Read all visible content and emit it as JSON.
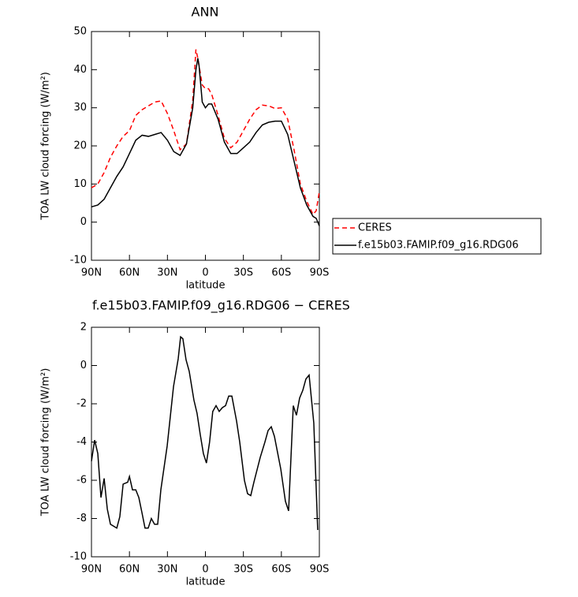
{
  "chart_data": [
    {
      "type": "line",
      "title": "ANN",
      "ylabel": "TOA LW cloud forcing (W/m²)",
      "xlabel": "latitude",
      "x": [
        90,
        85,
        80,
        75,
        70,
        65,
        60,
        55,
        50,
        45,
        40,
        35,
        30,
        25,
        20,
        15,
        10,
        7.5,
        6,
        5,
        2.5,
        0,
        -2.5,
        -5,
        -10,
        -15,
        -20,
        -25,
        -30,
        -35,
        -40,
        -45,
        -50,
        -55,
        -60,
        -65,
        -70,
        -75,
        -80,
        -85,
        -87.5,
        -90
      ],
      "series": [
        {
          "name": "CERES",
          "color": "#ff0000",
          "linestyle": "dashed",
          "values": [
            9,
            10,
            13,
            17,
            20,
            22.5,
            24,
            28,
            29.5,
            30.5,
            31.5,
            31.8,
            28.5,
            24,
            19,
            20.5,
            32,
            45.3,
            43,
            41,
            36,
            35,
            35,
            33.5,
            28,
            22,
            19.5,
            21,
            24,
            27,
            29.5,
            30.7,
            30.5,
            29.8,
            30,
            27,
            19,
            10,
            5.5,
            2,
            3,
            8
          ]
        },
        {
          "name": "f.e15b03.FAMIP.f09_g16.RDG06",
          "color": "#000000",
          "linestyle": "solid",
          "values": [
            4,
            4.5,
            6,
            9,
            12,
            14.5,
            18,
            21.5,
            22.8,
            22.5,
            23,
            23.5,
            21.5,
            18.5,
            17.5,
            20.5,
            30,
            40,
            43,
            41,
            31.5,
            30,
            31,
            31,
            27,
            21,
            18,
            18,
            19.5,
            21,
            23.5,
            25.5,
            26.2,
            26.5,
            26.5,
            23,
            16,
            9,
            4.5,
            1.5,
            1,
            -1
          ]
        }
      ],
      "xlim": [
        90,
        -90
      ],
      "xticks": [
        {
          "value": 90,
          "label": "90N"
        },
        {
          "value": 60,
          "label": "60N"
        },
        {
          "value": 30,
          "label": "30N"
        },
        0,
        {
          "value": -30,
          "label": "30S"
        },
        {
          "value": -60,
          "label": "60S"
        },
        {
          "value": -90,
          "label": "90S"
        }
      ],
      "ylim": [
        -10,
        50
      ],
      "yticks": [
        -10,
        0,
        10,
        20,
        30,
        40,
        50
      ],
      "legend": "right"
    },
    {
      "type": "line",
      "title": "f.e15b03.FAMIP.f09_g16.RDG06 − CERES",
      "ylabel": "TOA LW cloud forcing (W/m²)",
      "xlabel": "latitude",
      "x": [
        90,
        87.5,
        85,
        82.5,
        80,
        77.5,
        75,
        70,
        67.6,
        65,
        61.4,
        60,
        57.6,
        55,
        52.6,
        50.1,
        47.7,
        45.2,
        42.7,
        40.2,
        37.7,
        35.2,
        30.2,
        25.2,
        21.5,
        19.6,
        17.8,
        15.3,
        12.8,
        9.1,
        6.6,
        4.1,
        1.6,
        -0.8,
        -3.3,
        -5.8,
        -8.4,
        -10.9,
        -13.4,
        -15.9,
        -18.4,
        -20.9,
        -24.6,
        -27.1,
        -30.8,
        -33.3,
        -35.8,
        -38.3,
        -43.3,
        -47,
        -49.5,
        -52,
        -54.5,
        -59.5,
        -63.2,
        -65.7,
        -69.4,
        -71.9,
        -74.4,
        -76.9,
        -79.4,
        -81.9,
        -85.6,
        -88.7
      ],
      "series": [
        {
          "color": "#000000",
          "linestyle": "solid",
          "values": [
            -5.0,
            -3.9,
            -4.6,
            -6.9,
            -5.9,
            -7.5,
            -8.3,
            -8.5,
            -7.9,
            -6.2,
            -6.1,
            -5.8,
            -6.5,
            -6.5,
            -6.9,
            -7.7,
            -8.5,
            -8.5,
            -8.0,
            -8.3,
            -8.3,
            -6.5,
            -4.2,
            -1.1,
            0.35,
            1.5,
            1.4,
            0.3,
            -0.3,
            -1.8,
            -2.5,
            -3.6,
            -4.6,
            -5.1,
            -4.0,
            -2.4,
            -2.1,
            -2.4,
            -2.2,
            -2.1,
            -1.6,
            -1.6,
            -2.9,
            -4.0,
            -6.0,
            -6.7,
            -6.8,
            -6.1,
            -4.8,
            -4.0,
            -3.4,
            -3.2,
            -3.7,
            -5.4,
            -7.1,
            -7.6,
            -2.1,
            -2.6,
            -1.7,
            -1.3,
            -0.7,
            -0.5,
            -3.0,
            -8.6
          ]
        }
      ],
      "xlim": [
        90,
        -90
      ],
      "xticks": [
        {
          "value": 90,
          "label": "90N"
        },
        {
          "value": 60,
          "label": "60N"
        },
        {
          "value": 30,
          "label": "30N"
        },
        0,
        {
          "value": -30,
          "label": "30S"
        },
        {
          "value": -60,
          "label": "60S"
        },
        {
          "value": -90,
          "label": "90S"
        }
      ],
      "ylim": [
        -10,
        2
      ],
      "yticks": [
        -10,
        -8,
        -6,
        -4,
        -2,
        0,
        2
      ]
    }
  ]
}
